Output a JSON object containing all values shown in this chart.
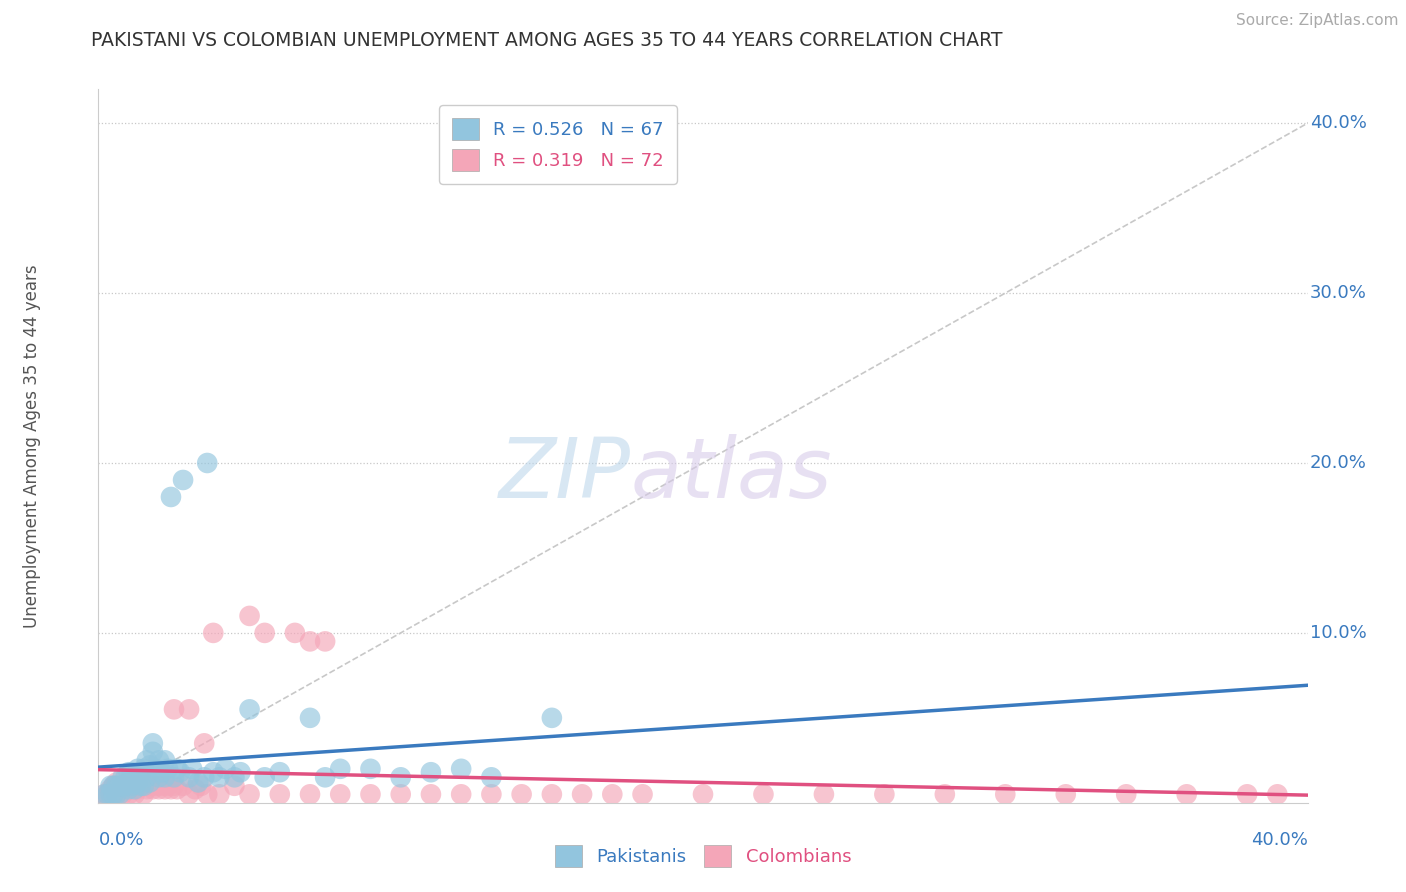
{
  "title": "PAKISTANI VS COLOMBIAN UNEMPLOYMENT AMONG AGES 35 TO 44 YEARS CORRELATION CHART",
  "source": "Source: ZipAtlas.com",
  "ylabel": "Unemployment Among Ages 35 to 44 years",
  "ytick_vals": [
    0.1,
    0.2,
    0.3,
    0.4
  ],
  "ytick_labels": [
    "10.0%",
    "20.0%",
    "30.0%",
    "40.0%"
  ],
  "xlim": [
    0.0,
    0.4
  ],
  "ylim": [
    0.0,
    0.42
  ],
  "pakistani_R": 0.526,
  "pakistani_N": 67,
  "colombian_R": 0.319,
  "colombian_N": 72,
  "blue_color": "#92c5de",
  "pink_color": "#f4a6b8",
  "blue_line_color": "#3a7abf",
  "pink_line_color": "#e05080",
  "watermark_zip": "ZIP",
  "watermark_atlas": "atlas",
  "pakistani_x": [
    0.002,
    0.003,
    0.004,
    0.004,
    0.005,
    0.005,
    0.006,
    0.006,
    0.007,
    0.007,
    0.008,
    0.008,
    0.009,
    0.009,
    0.01,
    0.01,
    0.01,
    0.011,
    0.011,
    0.012,
    0.012,
    0.013,
    0.013,
    0.014,
    0.014,
    0.015,
    0.015,
    0.016,
    0.016,
    0.017,
    0.017,
    0.018,
    0.018,
    0.019,
    0.02,
    0.02,
    0.021,
    0.022,
    0.022,
    0.023,
    0.024,
    0.025,
    0.026,
    0.027,
    0.028,
    0.03,
    0.031,
    0.033,
    0.035,
    0.036,
    0.038,
    0.04,
    0.042,
    0.045,
    0.047,
    0.05,
    0.055,
    0.06,
    0.07,
    0.075,
    0.08,
    0.09,
    0.1,
    0.11,
    0.12,
    0.13,
    0.15
  ],
  "pakistani_y": [
    0.005,
    0.005,
    0.005,
    0.01,
    0.005,
    0.01,
    0.005,
    0.01,
    0.005,
    0.01,
    0.01,
    0.015,
    0.01,
    0.015,
    0.008,
    0.012,
    0.018,
    0.01,
    0.018,
    0.008,
    0.015,
    0.012,
    0.02,
    0.01,
    0.018,
    0.01,
    0.02,
    0.015,
    0.025,
    0.012,
    0.022,
    0.03,
    0.035,
    0.02,
    0.015,
    0.025,
    0.018,
    0.015,
    0.025,
    0.02,
    0.18,
    0.015,
    0.02,
    0.018,
    0.19,
    0.015,
    0.02,
    0.012,
    0.015,
    0.2,
    0.018,
    0.015,
    0.02,
    0.015,
    0.018,
    0.055,
    0.015,
    0.018,
    0.05,
    0.015,
    0.02,
    0.02,
    0.015,
    0.018,
    0.02,
    0.015,
    0.05
  ],
  "colombian_x": [
    0.002,
    0.003,
    0.004,
    0.005,
    0.005,
    0.006,
    0.006,
    0.007,
    0.008,
    0.008,
    0.009,
    0.01,
    0.01,
    0.011,
    0.012,
    0.012,
    0.013,
    0.014,
    0.015,
    0.015,
    0.016,
    0.017,
    0.018,
    0.019,
    0.02,
    0.021,
    0.022,
    0.023,
    0.024,
    0.025,
    0.026,
    0.028,
    0.03,
    0.032,
    0.034,
    0.036,
    0.038,
    0.04,
    0.045,
    0.05,
    0.055,
    0.06,
    0.065,
    0.07,
    0.075,
    0.08,
    0.09,
    0.1,
    0.11,
    0.12,
    0.13,
    0.14,
    0.15,
    0.16,
    0.17,
    0.18,
    0.2,
    0.22,
    0.24,
    0.26,
    0.28,
    0.3,
    0.32,
    0.34,
    0.36,
    0.38,
    0.39,
    0.025,
    0.03,
    0.035,
    0.05,
    0.07
  ],
  "colombian_y": [
    0.005,
    0.005,
    0.008,
    0.005,
    0.01,
    0.008,
    0.012,
    0.008,
    0.005,
    0.01,
    0.008,
    0.005,
    0.012,
    0.008,
    0.005,
    0.01,
    0.008,
    0.01,
    0.005,
    0.012,
    0.008,
    0.01,
    0.008,
    0.01,
    0.008,
    0.01,
    0.008,
    0.01,
    0.008,
    0.01,
    0.008,
    0.01,
    0.005,
    0.008,
    0.01,
    0.005,
    0.1,
    0.005,
    0.01,
    0.005,
    0.1,
    0.005,
    0.1,
    0.005,
    0.095,
    0.005,
    0.005,
    0.005,
    0.005,
    0.005,
    0.005,
    0.005,
    0.005,
    0.005,
    0.005,
    0.005,
    0.005,
    0.005,
    0.005,
    0.005,
    0.005,
    0.005,
    0.005,
    0.005,
    0.005,
    0.005,
    0.005,
    0.055,
    0.055,
    0.035,
    0.11,
    0.095
  ]
}
